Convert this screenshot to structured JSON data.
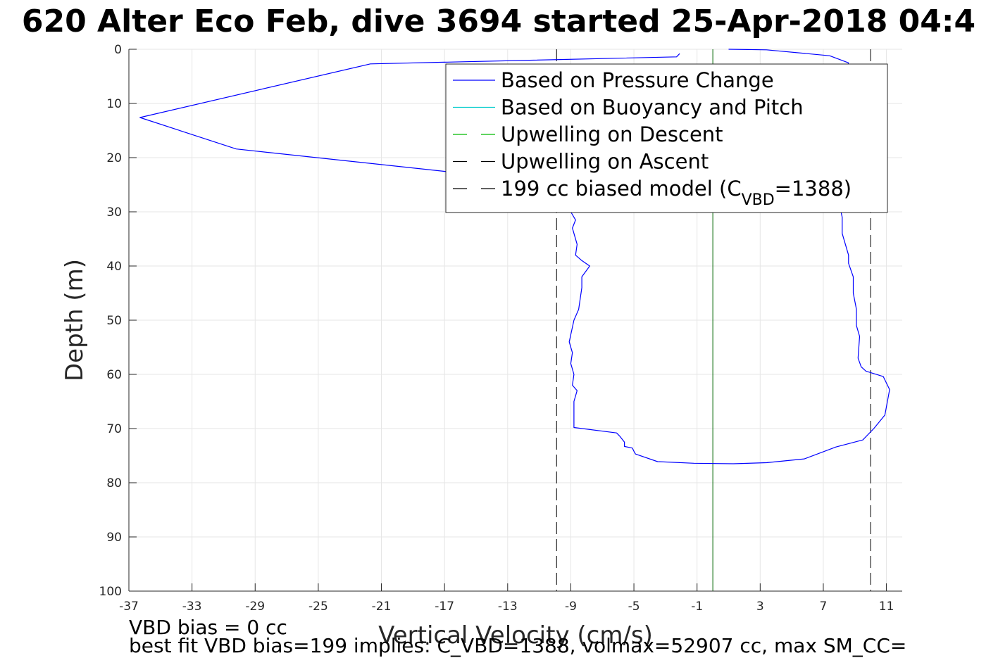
{
  "chart_data": {
    "type": "line",
    "title": "620 Alter Eco Feb, dive 3694 started 25-Apr-2018 04:4",
    "xlabel": "Vertical Velocity (cm/s)",
    "ylabel": "Depth (m)",
    "xlim": [
      -37,
      12
    ],
    "ylim": [
      0,
      100
    ],
    "y_reversed": true,
    "grid": true,
    "legend_placement": "top-right",
    "x_ticks": [
      -37,
      -33,
      -29,
      -25,
      -21,
      -17,
      -13,
      -9,
      -5,
      -1,
      3,
      7,
      11
    ],
    "y_ticks": [
      0,
      10,
      20,
      30,
      40,
      50,
      60,
      70,
      80,
      90,
      100
    ],
    "series": [
      {
        "name": "Based on Pressure Change",
        "color": "#0000ff",
        "style": "solid",
        "x": [
          -2.1,
          -2.3,
          -21.7,
          -36.3,
          -30.2,
          -16.8,
          -10.1,
          -8.8,
          -9.0,
          -8.7,
          -8.9,
          -8.6,
          -8.7,
          -8.3,
          -7.8,
          -8.3,
          -8.3,
          -8.5,
          -8.8,
          -9.1,
          -8.9,
          -9.0,
          -8.8,
          -8.9,
          -8.6,
          -8.8,
          -8.8,
          -6.1,
          -5.9,
          -5.6,
          -5.6,
          -5.1,
          -5.0,
          -4.9,
          -3.5,
          -1.2,
          1.3,
          3.4,
          5.8,
          7.8,
          9.5,
          10.2,
          10.9,
          11.2,
          10.8,
          9.7,
          9.4,
          9.2,
          9.3,
          9.1,
          9.1,
          8.9,
          8.9,
          8.6,
          8.6,
          8.2,
          8.2,
          8.0,
          7.9,
          8.1,
          8.3,
          8.6,
          7.4,
          3.4,
          1.0
        ],
        "y": [
          0.8,
          1.4,
          2.7,
          12.6,
          18.4,
          22.6,
          24.5,
          27.0,
          30.0,
          31.5,
          33.0,
          36.0,
          38.0,
          39.0,
          40.0,
          42.0,
          44.0,
          48.0,
          50.0,
          54.0,
          56.0,
          58.0,
          60.0,
          62.0,
          63.0,
          65.0,
          69.8,
          70.8,
          71.4,
          72.5,
          73.3,
          73.6,
          74.2,
          74.7,
          76.1,
          76.4,
          76.5,
          76.3,
          75.6,
          73.4,
          72.1,
          70.0,
          67.5,
          62.8,
          60.4,
          59.4,
          58.6,
          57.0,
          53.0,
          51.0,
          48.0,
          45.0,
          42.0,
          39.5,
          38.0,
          34.0,
          31.0,
          28.5,
          20.0,
          11.0,
          5.0,
          2.5,
          1.2,
          0.1,
          0.0
        ]
      },
      {
        "name": "Based on Buoyancy and Pitch",
        "color": "#00cccc",
        "style": "solid",
        "x": [],
        "y": []
      },
      {
        "name": "Upwelling on Descent",
        "color": "#00bb00",
        "style": "dashed",
        "x": [],
        "y": []
      },
      {
        "name": "Upwelling on Ascent",
        "color": "#000000",
        "style": "dashed",
        "x": [],
        "y": []
      },
      {
        "name": "199 cc biased model (C_VBD=1388)",
        "color": "#000000",
        "style": "dashed",
        "x": [],
        "y": []
      }
    ],
    "vertical_lines": [
      {
        "x": -9.9,
        "style": "dashed",
        "color": "#000000"
      },
      {
        "x": 0.0,
        "style": "solid",
        "color": "#006600"
      },
      {
        "x": 10.0,
        "style": "dashed",
        "color": "#000000"
      }
    ],
    "legend": {
      "entries": [
        {
          "label_pre": "Based on Pressure Change",
          "sub": "",
          "label_post": "",
          "color": "#0000ff",
          "style": "solid"
        },
        {
          "label_pre": "Based on Buoyancy and Pitch",
          "sub": "",
          "label_post": "",
          "color": "#00cccc",
          "style": "solid"
        },
        {
          "label_pre": "Upwelling on Descent",
          "sub": "",
          "label_post": "",
          "color": "#00bb00",
          "style": "dashed"
        },
        {
          "label_pre": "Upwelling on Ascent",
          "sub": "",
          "label_post": "",
          "color": "#000000",
          "style": "dashed"
        },
        {
          "label_pre": "199 cc biased model (C",
          "sub": "VBD",
          "label_post": "=1388)",
          "color": "#000000",
          "style": "dashed"
        }
      ]
    },
    "footer": [
      "VBD bias = 0 cc",
      "best fit VBD bias=199 implies: C_VBD=1388, volmax=52907 cc, max SM_CC="
    ]
  }
}
